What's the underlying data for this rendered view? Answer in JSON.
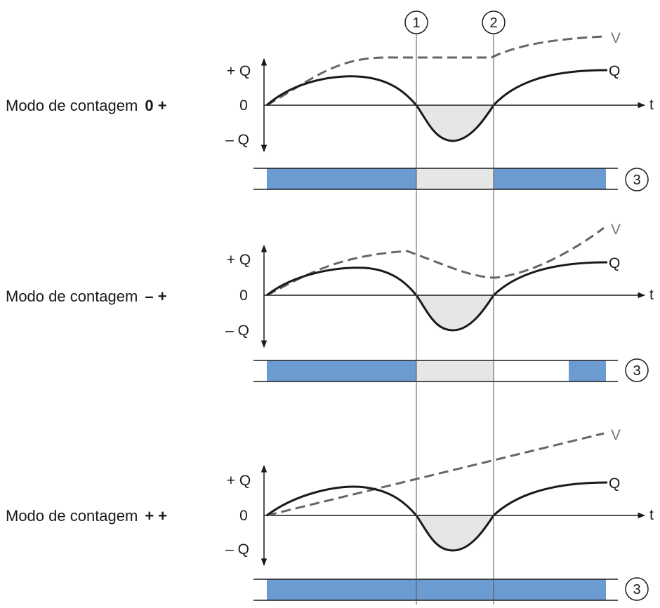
{
  "colors": {
    "bar_fill": "#6b9bd1",
    "shade": "#e6e6e6",
    "q_curve": "#1a1a1a",
    "v_curve": "#666666",
    "axis": "#1a1a1a"
  },
  "markers": {
    "m1": "1",
    "m2": "2"
  },
  "axis_labels": {
    "plus_q": "+ Q",
    "zero": "0",
    "minus_q": "– Q",
    "t": "t"
  },
  "curve_labels": {
    "v": "V",
    "q": "Q"
  },
  "bar_label": "3",
  "panels": [
    {
      "mode_label": "Modo de contagem",
      "mode_symbol": "0 +"
    },
    {
      "mode_label": "Modo de contagem",
      "mode_symbol": "– +"
    },
    {
      "mode_label": "Modo de contagem",
      "mode_symbol": "+ +"
    }
  ]
}
